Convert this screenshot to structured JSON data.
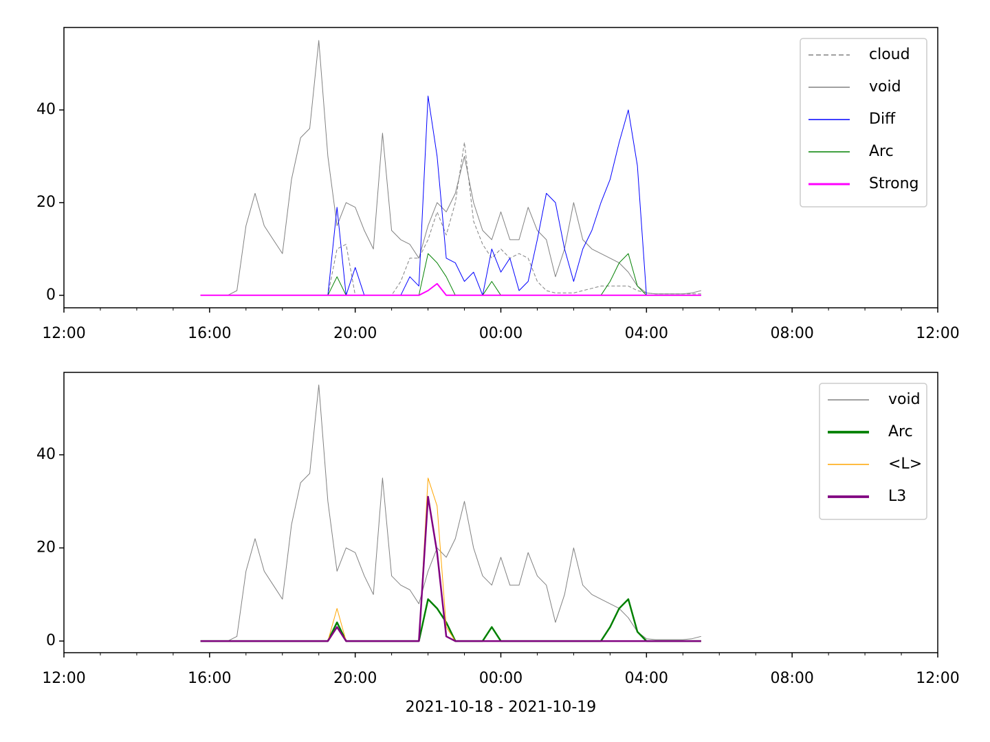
{
  "chart_data": [
    {
      "type": "line",
      "legend": "upper right",
      "x": [
        15.75,
        16,
        16.25,
        16.5,
        16.75,
        17,
        17.25,
        17.5,
        17.75,
        18,
        18.25,
        18.5,
        18.75,
        19,
        19.25,
        19.5,
        19.75,
        20,
        20.25,
        20.5,
        20.75,
        21,
        21.25,
        21.5,
        21.75,
        22,
        22.25,
        22.5,
        22.75,
        23,
        23.25,
        23.5,
        23.75,
        24,
        24.25,
        24.5,
        24.75,
        25,
        25.25,
        25.5,
        25.75,
        26,
        26.25,
        26.5,
        26.75,
        27,
        27.25,
        27.5,
        27.75,
        28,
        28.25,
        28.5,
        28.75,
        29,
        29.25,
        29.5
      ],
      "xlim": [
        12,
        36
      ],
      "xticks": [
        {
          "value": 12,
          "label": "12:00"
        },
        {
          "value": 16,
          "label": "16:00"
        },
        {
          "value": 20,
          "label": "20:00"
        },
        {
          "value": 24,
          "label": "00:00"
        },
        {
          "value": 28,
          "label": "04:00"
        },
        {
          "value": 32,
          "label": "08:00"
        },
        {
          "value": 36,
          "label": "12:00"
        }
      ],
      "xminorticks": [
        13,
        14,
        15,
        17,
        18,
        19,
        21,
        22,
        23,
        25,
        26,
        27,
        29,
        30,
        31,
        33,
        34,
        35
      ],
      "ylim": [
        -2.7,
        57.8
      ],
      "yticks": [
        0,
        20,
        40
      ],
      "series": [
        {
          "name": "cloud",
          "color": "#808080",
          "width": 1,
          "dash": true,
          "values": [
            0,
            0,
            0,
            0,
            0,
            0,
            0,
            0,
            0,
            0,
            0,
            0,
            0,
            0,
            0,
            10,
            11,
            0,
            0,
            0,
            0,
            0,
            3,
            8,
            8,
            12,
            18,
            13,
            20,
            33,
            16,
            11,
            8,
            10,
            8,
            9,
            8,
            3,
            1,
            0.5,
            0.5,
            0.5,
            1,
            1.5,
            2,
            2,
            2,
            2,
            1,
            0.5,
            0.3,
            0.3,
            0.3,
            0.3,
            0.3,
            0.3
          ]
        },
        {
          "name": "void",
          "color": "#808080",
          "width": 1,
          "values": [
            0,
            0,
            0,
            0,
            1,
            15,
            22,
            15,
            12,
            9,
            25,
            34,
            36,
            55,
            30,
            15,
            20,
            19,
            14,
            10,
            35,
            14,
            12,
            11,
            8,
            15,
            20,
            18,
            22,
            30,
            20,
            14,
            12,
            18,
            12,
            12,
            19,
            14,
            12,
            4,
            10,
            20,
            12,
            10,
            9,
            8,
            7,
            5,
            2,
            0.5,
            0.3,
            0.3,
            0.3,
            0.3,
            0.5,
            1
          ]
        },
        {
          "name": "Diff",
          "color": "#0000ff",
          "width": 1,
          "values": [
            0,
            0,
            0,
            0,
            0,
            0,
            0,
            0,
            0,
            0,
            0,
            0,
            0,
            0,
            0,
            19,
            0,
            6,
            0,
            0,
            0,
            0,
            0,
            4,
            2,
            43,
            30,
            8,
            7,
            3,
            5,
            0,
            10,
            5,
            8,
            1,
            3,
            12,
            22,
            20,
            10,
            3,
            10,
            14,
            20,
            25,
            33,
            40,
            28,
            0,
            0,
            0,
            0,
            0,
            0,
            0
          ]
        },
        {
          "name": "Arc",
          "color": "#008000",
          "width": 1,
          "values": [
            0,
            0,
            0,
            0,
            0,
            0,
            0,
            0,
            0,
            0,
            0,
            0,
            0,
            0,
            0,
            4,
            0,
            0,
            0,
            0,
            0,
            0,
            0,
            0,
            0,
            9,
            7,
            4,
            0,
            0,
            0,
            0,
            3,
            0,
            0,
            0,
            0,
            0,
            0,
            0,
            0,
            0,
            0,
            0,
            0,
            3,
            7,
            9,
            2,
            0,
            0,
            0,
            0,
            0,
            0,
            0
          ]
        },
        {
          "name": "Strong",
          "color": "#ff00ff",
          "width": 2,
          "values": [
            0,
            0,
            0,
            0,
            0,
            0,
            0,
            0,
            0,
            0,
            0,
            0,
            0,
            0,
            0,
            0,
            0,
            0,
            0,
            0,
            0,
            0,
            0,
            0,
            0,
            1,
            2.5,
            0,
            0,
            0,
            0,
            0,
            0,
            0,
            0,
            0,
            0,
            0,
            0,
            0,
            0,
            0,
            0,
            0,
            0,
            0,
            0,
            0,
            0,
            0,
            0,
            0,
            0,
            0,
            0,
            0
          ]
        }
      ]
    },
    {
      "type": "line",
      "legend": "upper right",
      "xlabel": "2021-10-18 - 2021-10-19",
      "x": [
        15.75,
        16,
        16.25,
        16.5,
        16.75,
        17,
        17.25,
        17.5,
        17.75,
        18,
        18.25,
        18.5,
        18.75,
        19,
        19.25,
        19.5,
        19.75,
        20,
        20.25,
        20.5,
        20.75,
        21,
        21.25,
        21.5,
        21.75,
        22,
        22.25,
        22.5,
        22.75,
        23,
        23.25,
        23.5,
        23.75,
        24,
        24.25,
        24.5,
        24.75,
        25,
        25.25,
        25.5,
        25.75,
        26,
        26.25,
        26.5,
        26.75,
        27,
        27.25,
        27.5,
        27.75,
        28,
        28.25,
        28.5,
        28.75,
        29,
        29.25,
        29.5
      ],
      "xlim": [
        12,
        36
      ],
      "xticks": [
        {
          "value": 12,
          "label": "12:00"
        },
        {
          "value": 16,
          "label": "16:00"
        },
        {
          "value": 20,
          "label": "20:00"
        },
        {
          "value": 24,
          "label": "00:00"
        },
        {
          "value": 28,
          "label": "04:00"
        },
        {
          "value": 32,
          "label": "08:00"
        },
        {
          "value": 36,
          "label": "12:00"
        }
      ],
      "xminorticks": [
        13,
        14,
        15,
        17,
        18,
        19,
        21,
        22,
        23,
        25,
        26,
        27,
        29,
        30,
        31,
        33,
        34,
        35
      ],
      "ylim": [
        -2.5,
        57.7
      ],
      "yticks": [
        0,
        20,
        40
      ],
      "series": [
        {
          "name": "void",
          "color": "#808080",
          "width": 1,
          "values": [
            0,
            0,
            0,
            0,
            1,
            15,
            22,
            15,
            12,
            9,
            25,
            34,
            36,
            55,
            30,
            15,
            20,
            19,
            14,
            10,
            35,
            14,
            12,
            11,
            8,
            15,
            20,
            18,
            22,
            30,
            20,
            14,
            12,
            18,
            12,
            12,
            19,
            14,
            12,
            4,
            10,
            20,
            12,
            10,
            9,
            8,
            7,
            5,
            2,
            0.5,
            0.3,
            0.3,
            0.3,
            0.3,
            0.5,
            1
          ]
        },
        {
          "name": "Arc",
          "color": "#008000",
          "width": 2.5,
          "values": [
            0,
            0,
            0,
            0,
            0,
            0,
            0,
            0,
            0,
            0,
            0,
            0,
            0,
            0,
            0,
            4,
            0,
            0,
            0,
            0,
            0,
            0,
            0,
            0,
            0,
            9,
            7,
            4,
            0,
            0,
            0,
            0,
            3,
            0,
            0,
            0,
            0,
            0,
            0,
            0,
            0,
            0,
            0,
            0,
            0,
            3,
            7,
            9,
            2,
            0,
            0,
            0,
            0,
            0,
            0,
            0
          ]
        },
        {
          "name": "<L>",
          "color": "#ffa500",
          "width": 1,
          "values": [
            0,
            0,
            0,
            0,
            0,
            0,
            0,
            0,
            0,
            0,
            0,
            0,
            0,
            0,
            0,
            7,
            0,
            0,
            0,
            0,
            0,
            0,
            0,
            0,
            0,
            35,
            29,
            3,
            0,
            0,
            0,
            0,
            0,
            0,
            0,
            0,
            0,
            0,
            0,
            0,
            0,
            0,
            0,
            0,
            0,
            0,
            0,
            0,
            0,
            0,
            0,
            0,
            0,
            0,
            0,
            0
          ]
        },
        {
          "name": "L3",
          "color": "#800080",
          "width": 2.5,
          "values": [
            0,
            0,
            0,
            0,
            0,
            0,
            0,
            0,
            0,
            0,
            0,
            0,
            0,
            0,
            0,
            3,
            0,
            0,
            0,
            0,
            0,
            0,
            0,
            0,
            0,
            31,
            19,
            1,
            0,
            0,
            0,
            0,
            0,
            0,
            0,
            0,
            0,
            0,
            0,
            0,
            0,
            0,
            0,
            0,
            0,
            0,
            0,
            0,
            0,
            0,
            0,
            0,
            0,
            0,
            0,
            0
          ]
        }
      ]
    }
  ]
}
